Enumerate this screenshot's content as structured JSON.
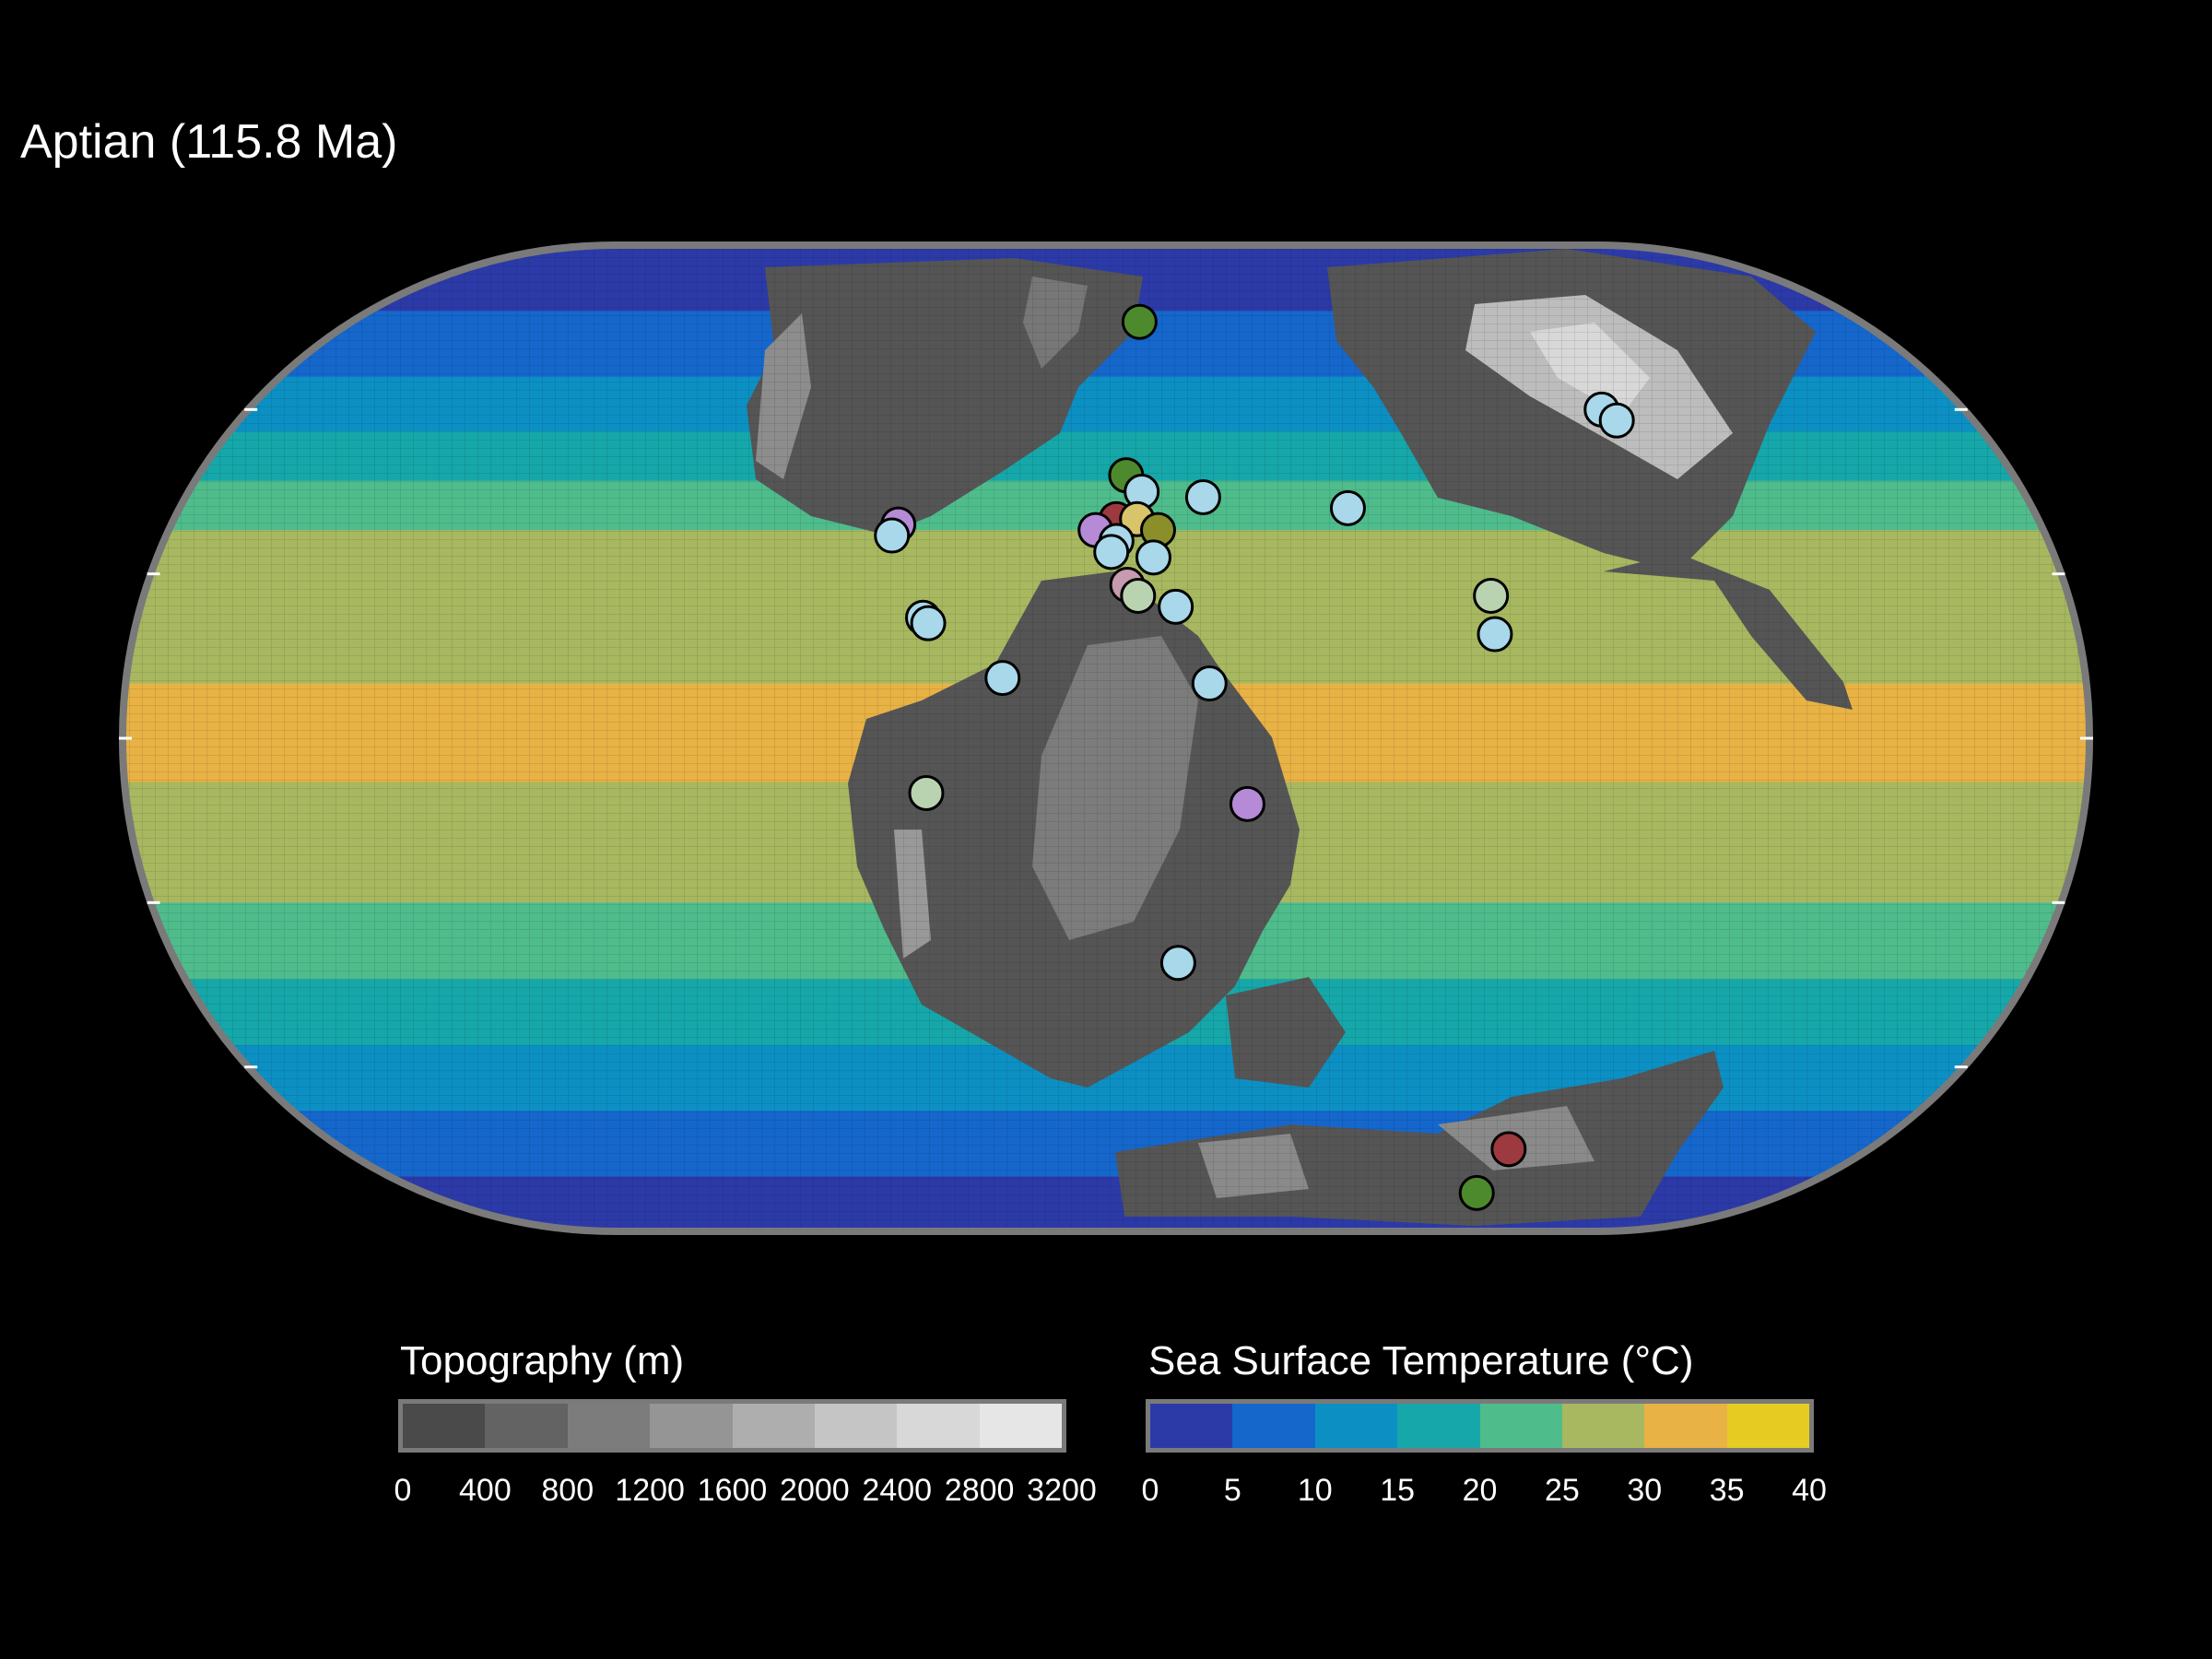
{
  "title": "Aptian (115.8 Ma)",
  "legend_topography": {
    "title": "Topography (m)",
    "ticks": [
      "0",
      "400",
      "800",
      "1200",
      "1600",
      "2000",
      "2400",
      "2800",
      "3200"
    ],
    "colors": [
      "#4a4a4a",
      "#636363",
      "#7c7c7c",
      "#959595",
      "#aeaeae",
      "#c5c5c5",
      "#d8d8d8",
      "#e6e6e6"
    ]
  },
  "legend_sst": {
    "title": "Sea Surface Temperature (°C)",
    "ticks": [
      "0",
      "5",
      "10",
      "15",
      "20",
      "25",
      "30",
      "35",
      "40"
    ],
    "colors": [
      "#2c3aa8",
      "#1567cc",
      "#0c90c4",
      "#16a7aa",
      "#4fbc8c",
      "#a7b860",
      "#e8b245",
      "#e6cc22"
    ]
  },
  "colors": {
    "background": "#000000",
    "map_border": "#7a7a7a",
    "land_base": "#4f4f4f",
    "highland": "#9a9a9a"
  },
  "ocean_bands_celsius": [
    {
      "lat_from": 90,
      "lat_to": 78,
      "sst_bin": 0
    },
    {
      "lat_from": 78,
      "lat_to": 66,
      "sst_bin": 1
    },
    {
      "lat_from": 66,
      "lat_to": 56,
      "sst_bin": 2
    },
    {
      "lat_from": 56,
      "lat_to": 47,
      "sst_bin": 3
    },
    {
      "lat_from": 47,
      "lat_to": 38,
      "sst_bin": 4
    },
    {
      "lat_from": 38,
      "lat_to": 10,
      "sst_bin": 5
    },
    {
      "lat_from": 10,
      "lat_to": -8,
      "sst_bin": 6
    },
    {
      "lat_from": -8,
      "lat_to": -30,
      "sst_bin": 5
    },
    {
      "lat_from": -30,
      "lat_to": -44,
      "sst_bin": 4
    },
    {
      "lat_from": -44,
      "lat_to": -56,
      "sst_bin": 3
    },
    {
      "lat_from": -56,
      "lat_to": -68,
      "sst_bin": 2
    },
    {
      "lat_from": -68,
      "lat_to": -80,
      "sst_bin": 1
    },
    {
      "lat_from": -80,
      "lat_to": -90,
      "sst_bin": 0
    }
  ],
  "sample_points": [
    {
      "lon": 8,
      "lat": 76,
      "color": "#4d8a2e"
    },
    {
      "lon": 104,
      "lat": 60,
      "color": "#a8d8ea"
    },
    {
      "lon": 106,
      "lat": 58,
      "color": "#a8d8ea"
    },
    {
      "lon": -40,
      "lat": 39,
      "color": "#b58ad6"
    },
    {
      "lon": -41,
      "lat": 37,
      "color": "#a8d8ea"
    },
    {
      "lon": -34,
      "lat": 22,
      "color": "#a8d8ea"
    },
    {
      "lon": -33,
      "lat": 21,
      "color": "#a8d8ea"
    },
    {
      "lon": 4,
      "lat": 48,
      "color": "#4d8a2e"
    },
    {
      "lon": 7,
      "lat": 45,
      "color": "#a8d8ea"
    },
    {
      "lon": 2,
      "lat": 40,
      "color": "#9c3a3f"
    },
    {
      "lon": 6,
      "lat": 40,
      "color": "#d8c46a"
    },
    {
      "lon": 10,
      "lat": 38,
      "color": "#8a8f2a"
    },
    {
      "lon": -2,
      "lat": 38,
      "color": "#b58ad6"
    },
    {
      "lon": 2,
      "lat": 36,
      "color": "#a8d8ea"
    },
    {
      "lon": 1,
      "lat": 34,
      "color": "#a8d8ea"
    },
    {
      "lon": 9,
      "lat": 33,
      "color": "#a8d8ea"
    },
    {
      "lon": 4,
      "lat": 28,
      "color": "#c79ab0"
    },
    {
      "lon": 6,
      "lat": 26,
      "color": "#b9d3b0"
    },
    {
      "lon": 13,
      "lat": 24,
      "color": "#a8d8ea"
    },
    {
      "lon": 19,
      "lat": 44,
      "color": "#a8d8ea"
    },
    {
      "lon": 47,
      "lat": 42,
      "color": "#a8d8ea"
    },
    {
      "lon": 72,
      "lat": 26,
      "color": "#b9d3b0"
    },
    {
      "lon": 72,
      "lat": 19,
      "color": "#a8d8ea"
    },
    {
      "lon": -19,
      "lat": 11,
      "color": "#a8d8ea"
    },
    {
      "lon": 19,
      "lat": 10,
      "color": "#a8d8ea"
    },
    {
      "lon": -33,
      "lat": -10,
      "color": "#b9d3b0"
    },
    {
      "lon": 26,
      "lat": -12,
      "color": "#b58ad6"
    },
    {
      "lon": 14,
      "lat": -41,
      "color": "#a8d8ea"
    },
    {
      "lon": 95,
      "lat": -75,
      "color": "#9c3a3f"
    },
    {
      "lon": 98,
      "lat": -83,
      "color": "#4d8a2e"
    }
  ]
}
